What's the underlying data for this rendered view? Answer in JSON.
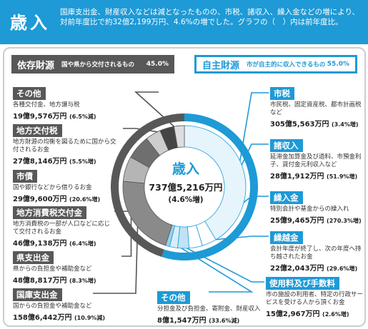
{
  "header": {
    "title": "歳入",
    "intro": "国庫支出金、財産収入などは減となったものの、市税、諸収入、繰入金などの増により、対前年度比で約32億2,199万円、4.6%の増でした。グラフの（　）内は前年度比。"
  },
  "groups": {
    "dependent": {
      "name": "依存財源",
      "desc": "国や県から交付されるもの",
      "pct": "45.0%"
    },
    "own": {
      "name": "自主財源",
      "desc": "市が自主的に収入できるもの",
      "pct": "55.0%"
    }
  },
  "center": {
    "title": "歳入",
    "total": "737億5,216万円",
    "change": "(4.6%増)"
  },
  "colors": {
    "accent": "#1e9ad6",
    "dependent": "#585858",
    "own_light": "#e6f4fc"
  },
  "chart_data": {
    "type": "pie",
    "variant": "donut",
    "title": "歳入",
    "total": "737億5,216万円",
    "unit": "万円",
    "categories": [
      "市税",
      "諸収入",
      "繰入金",
      "繰越金",
      "使用料及び手数料",
      "その他(自主財源)",
      "国庫支出金",
      "県支出金",
      "地方消費税交付金",
      "市債",
      "地方交付税",
      "その他(依存財源)"
    ],
    "values": [
      3055563,
      281912,
      259465,
      222043,
      152967,
      81547,
      1586442,
      488817,
      469138,
      299600,
      278146,
      199576
    ],
    "groups": [
      {
        "name": "自主財源",
        "pct": 55.0
      },
      {
        "name": "依存財源",
        "pct": 45.0
      }
    ]
  },
  "dependent_items": [
    {
      "name": "その他",
      "desc": "各種交付金、地方譲与税",
      "amount": "19億9,576万円",
      "change": "(6.5%減)"
    },
    {
      "name": "地方交付税",
      "desc": "地方財源の均衡を図るために国から交付されるお金",
      "amount": "27億8,146万円",
      "change": "(5.5%増)"
    },
    {
      "name": "市債",
      "desc": "国や銀行などから借りるお金",
      "amount": "29億9,600万円",
      "change": "(20.6%増)"
    },
    {
      "name": "地方消費税交付金",
      "desc": "地方消費税の一部が人口などに応じて交付されるお金",
      "amount": "46億9,138万円",
      "change": "(6.4%増)"
    },
    {
      "name": "県支出金",
      "desc": "県からの負担金や補助金など",
      "amount": "48億8,817万円",
      "change": "(8.3%増)"
    },
    {
      "name": "国庫支出金",
      "desc": "国からの負担金や補助金など",
      "amount": "158億6,442万円",
      "change": "(10.9%減)"
    }
  ],
  "own_items": [
    {
      "name": "市税",
      "desc": "市民税、固定資産税、都市計画税など",
      "amount": "305億5,563万円",
      "change": "(3.4%増)"
    },
    {
      "name": "諸収入",
      "desc": "延滞金加算金及び過料、市預金利子、貸付金元利収入など",
      "amount": "28億1,912万円",
      "change": "(51.9%増)"
    },
    {
      "name": "繰入金",
      "desc": "特別会計や基金からの繰入れ",
      "amount": "25億9,465万円",
      "change": "(270.3%増)"
    },
    {
      "name": "繰越金",
      "desc": "会計年度が終了し、次の年度へ持ち越されたお金",
      "amount": "22億2,043万円",
      "change": "(29.6%増)"
    },
    {
      "name": "使用料及び手数料",
      "desc": "市の施設の利用者、特定の行政サービスを受ける人から頂くお金",
      "amount": "15億2,967万円",
      "change": "(2.6%増)"
    },
    {
      "name": "その他",
      "desc": "分担金及び負担金、寄附金、財産収入",
      "amount": "8億1,547万円",
      "change": "(33.6%減)"
    }
  ]
}
